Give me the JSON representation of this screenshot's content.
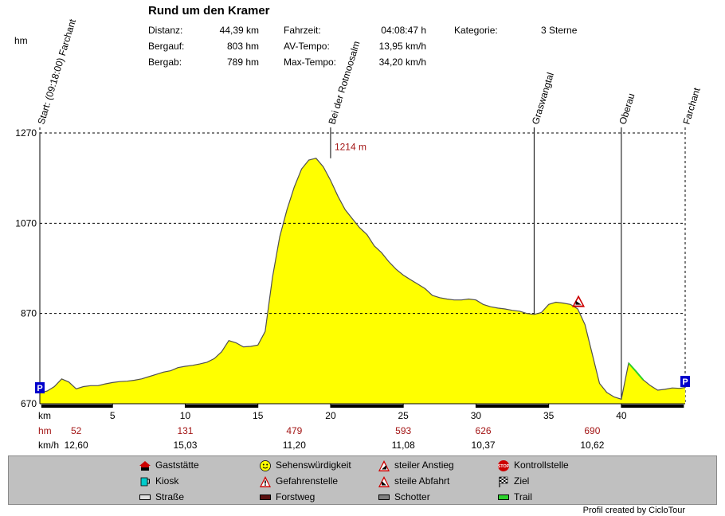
{
  "header": {
    "title": "Rund um den Kramer",
    "unit_label": "hm",
    "stats": [
      {
        "label": "Distanz:",
        "value": "44,39 km"
      },
      {
        "label": "Bergauf:",
        "value": "803 hm"
      },
      {
        "label": "Bergab:",
        "value": "789 hm"
      },
      {
        "label": "Fahrzeit:",
        "value": "04:08:47 h"
      },
      {
        "label": "AV-Tempo:",
        "value": "13,95 km/h"
      },
      {
        "label": "Max-Tempo:",
        "value": "34,20 km/h"
      },
      {
        "label": "Kategorie:",
        "value": "3 Sterne"
      }
    ]
  },
  "chart_data": {
    "type": "area",
    "xlabel": "km",
    "xlim": [
      0,
      44.39
    ],
    "ylim": [
      670,
      1270
    ],
    "y_ticks": [
      "670",
      "870",
      "1070",
      "1270"
    ],
    "x_ticks": [
      "5",
      "10",
      "15",
      "20",
      "25",
      "30",
      "35",
      "40"
    ],
    "grid": true,
    "fill_color": "#ffff00",
    "trail_color": "#2bd12b",
    "waypoints": [
      {
        "km": 0,
        "label": "Start: (09:18:00) Farchant"
      },
      {
        "km": 20,
        "label": "Bei der Rotmoosalm"
      },
      {
        "km": 34,
        "label": "Graswangtal"
      },
      {
        "km": 40,
        "label": "Oberau"
      },
      {
        "km": 44.39,
        "label": "Farchant"
      }
    ],
    "peak_label": "1214 m",
    "hm_row": {
      "label": "hm",
      "values": [
        "52",
        "131",
        "479",
        "593",
        "626",
        "690"
      ]
    },
    "kmh_row": {
      "label": "km/h",
      "values": [
        "12,60",
        "15,03",
        "11,20",
        "11,08",
        "10,37",
        "10,62"
      ]
    },
    "profile_km": [
      0,
      0.5,
      1,
      1.5,
      2,
      2.5,
      3,
      3.5,
      4,
      4.5,
      5,
      5.5,
      6,
      6.5,
      7,
      7.5,
      8,
      8.5,
      9,
      9.5,
      10,
      10.5,
      11,
      11.5,
      12,
      12.5,
      13,
      13.5,
      14,
      14.5,
      15,
      15.5,
      16,
      16.5,
      17,
      17.5,
      18,
      18.5,
      19,
      19.5,
      20,
      20.5,
      21,
      21.5,
      22,
      22.5,
      23,
      23.5,
      24,
      24.5,
      25,
      25.5,
      26,
      26.5,
      27,
      27.5,
      28,
      28.5,
      29,
      29.5,
      30,
      30.5,
      31,
      31.5,
      32,
      32.5,
      33,
      33.5,
      34,
      34.5,
      35,
      35.5,
      36,
      36.5,
      37,
      37.5,
      38,
      38.5,
      39,
      39.5,
      40,
      40.5,
      41,
      41.5,
      42,
      42.5,
      43,
      43.5,
      44,
      44.39
    ],
    "profile_m": [
      694,
      698,
      708,
      725,
      718,
      703,
      708,
      710,
      710,
      714,
      717,
      719,
      720,
      722,
      725,
      730,
      735,
      740,
      743,
      750,
      753,
      755,
      758,
      762,
      770,
      785,
      810,
      805,
      796,
      797,
      800,
      830,
      950,
      1040,
      1100,
      1150,
      1190,
      1210,
      1214,
      1195,
      1165,
      1130,
      1100,
      1080,
      1060,
      1045,
      1020,
      1005,
      985,
      968,
      955,
      945,
      935,
      925,
      910,
      905,
      902,
      900,
      900,
      902,
      900,
      890,
      885,
      882,
      880,
      877,
      875,
      870,
      868,
      872,
      890,
      895,
      893,
      890,
      880,
      845,
      780,
      715,
      695,
      685,
      680,
      760,
      742,
      723,
      710,
      700,
      702,
      705,
      704,
      706
    ],
    "trail_km_range": [
      40.2,
      41.7
    ]
  },
  "legend": {
    "items": [
      {
        "label": "Gaststätte",
        "icon": "house-icon"
      },
      {
        "label": "Sehenswürdigkeit",
        "icon": "smiley-icon"
      },
      {
        "label": "steiler Anstieg",
        "icon": "warning-up-icon"
      },
      {
        "label": "Kontrollstelle",
        "icon": "stop-icon"
      },
      {
        "label": "Kiosk",
        "icon": "cup-icon"
      },
      {
        "label": "Gefahrenstelle",
        "icon": "warning-icon"
      },
      {
        "label": "steile Abfahrt",
        "icon": "warning-down-icon"
      },
      {
        "label": "Ziel",
        "icon": "checkered-flag-icon"
      },
      {
        "label": "Straße",
        "icon": "road-swatch",
        "color": "#e0e0e0"
      },
      {
        "label": "Forstweg",
        "icon": "forest-swatch",
        "color": "#5a1010"
      },
      {
        "label": "Schotter",
        "icon": "gravel-swatch",
        "color": "#808080"
      },
      {
        "label": "Trail",
        "icon": "trail-swatch",
        "color": "#2bd12b"
      }
    ]
  },
  "credit": "Profil created by CicloTour"
}
